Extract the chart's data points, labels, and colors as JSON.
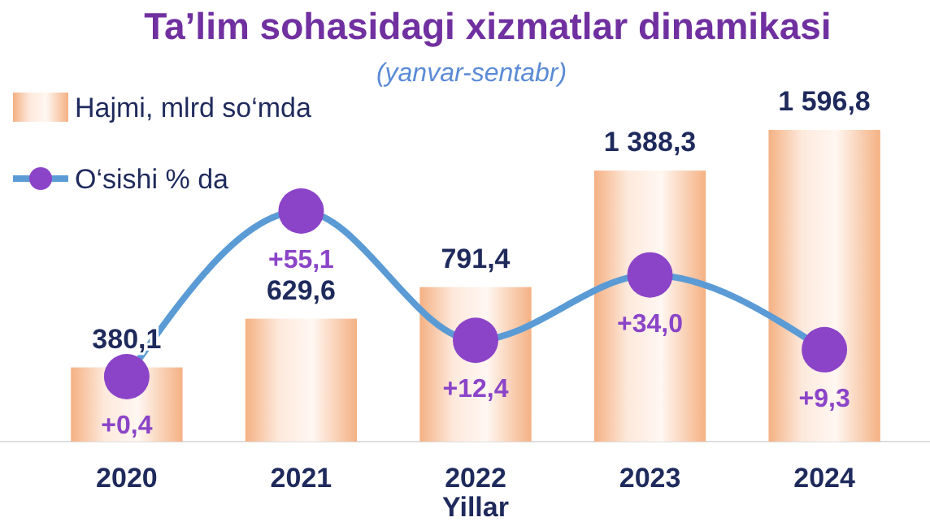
{
  "chart_data": {
    "type": "bar",
    "title": "Ta’lim sohasidagi xizmatlar dinamikasi",
    "subtitle": "(yanvar-sentabr)",
    "xlabel": "Yillar",
    "categories": [
      "2020",
      "2021",
      "2022",
      "2023",
      "2024"
    ],
    "series": [
      {
        "type": "bar",
        "name": "Hajmi, mlrd so‘mda",
        "color": "#f4b183",
        "values": [
          380.1,
          629.6,
          791.4,
          1388.3,
          1596.8
        ],
        "value_labels": [
          "380,1",
          "629,6",
          "791,4",
          "1 388,3",
          "1 596,8"
        ]
      },
      {
        "type": "line",
        "name": "O‘sishi  % da",
        "color": "#5b9bd5",
        "axis": "y2",
        "marker": "circle",
        "values": [
          0.4,
          55.1,
          12.4,
          34.0,
          9.3
        ],
        "value_labels": [
          "+0,4",
          "+55,1",
          "+12,4",
          "+34,0",
          "+9,3"
        ]
      }
    ],
    "legend": "top left",
    "tick_labels": "x"
  }
}
